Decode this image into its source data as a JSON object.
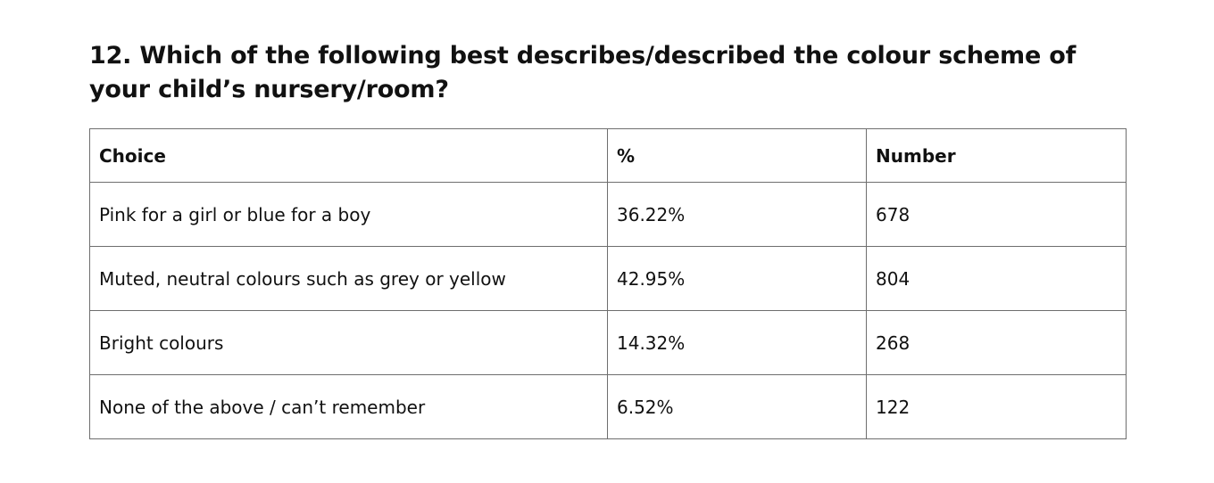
{
  "question": {
    "title": "12. Which of the following best describes/described the colour scheme of your child’s nursery/room?"
  },
  "table": {
    "headers": {
      "choice": "Choice",
      "percent": "%",
      "number": "Number"
    },
    "rows": [
      {
        "choice": "Pink for a girl or blue for a boy",
        "percent": "36.22%",
        "number": "678"
      },
      {
        "choice": "Muted, neutral colours such as grey or yellow",
        "percent": "42.95%",
        "number": "804"
      },
      {
        "choice": "Bright colours",
        "percent": "14.32%",
        "number": "268"
      },
      {
        "choice": "None of the above / can’t remember",
        "percent": "6.52%",
        "number": "122"
      }
    ]
  },
  "colors": {
    "text": "#111111",
    "border": "#6e6e6e",
    "background": "#ffffff"
  }
}
